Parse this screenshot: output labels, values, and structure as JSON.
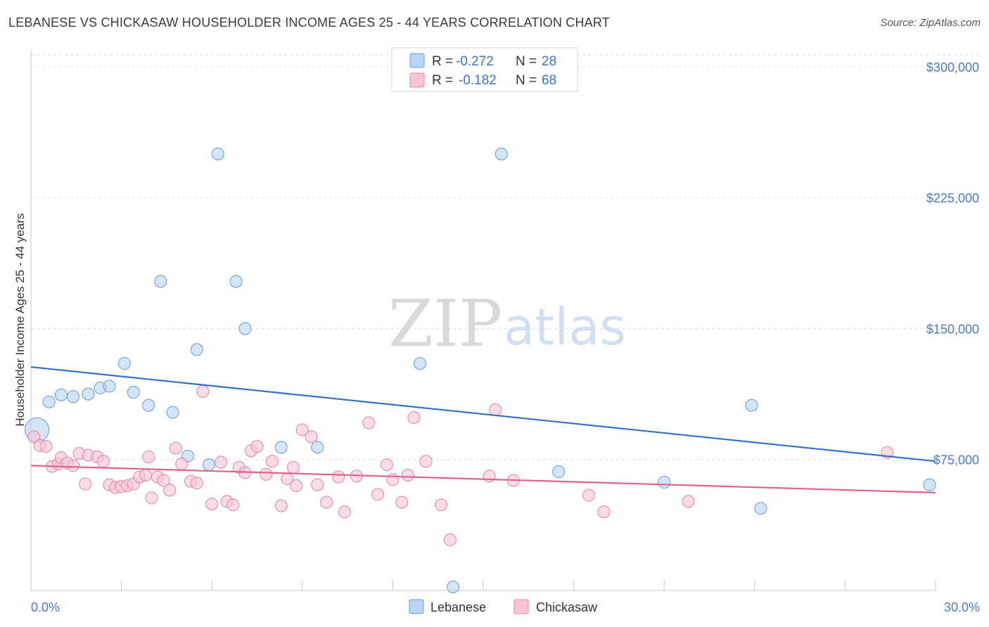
{
  "title": "LEBANESE VS CHICKASAW HOUSEHOLDER INCOME AGES 25 - 44 YEARS CORRELATION CHART",
  "source": "Source: ZipAtlas.com",
  "watermark": {
    "zip": "ZIP",
    "atlas": "atlas"
  },
  "colors": {
    "lebanese_fill": "#b9d3f4",
    "lebanese_stroke": "#6fa0dc",
    "lebanese_line": "#2f6fd0",
    "chickasaw_fill": "#f8c4d6",
    "chickasaw_stroke": "#e48aaa",
    "chickasaw_line": "#e0628e",
    "grid": "#dedede",
    "axis_text": "#4a7cc6"
  },
  "legend": {
    "lebanese": {
      "r_label": "R = ",
      "r_value": "-0.272",
      "n_label": "N = ",
      "n_value": "28"
    },
    "chickasaw": {
      "r_label": "R = ",
      "r_value": "-0.182",
      "n_label": "N = ",
      "n_value": "68"
    }
  },
  "chart_data": {
    "type": "scatter",
    "title": "LEBANESE VS CHICKASAW HOUSEHOLDER INCOME AGES 25 - 44 YEARS CORRELATION CHART",
    "xlabel": "",
    "ylabel": "Householder Income Ages 25 - 44 years",
    "xlim": [
      0,
      30
    ],
    "ylim": [
      0,
      310000
    ],
    "x_tick_labels": [
      {
        "value": 0,
        "label": "0.0%"
      },
      {
        "value": 30,
        "label": "30.0%"
      }
    ],
    "y_tick_labels": [
      {
        "value": 75000,
        "label": "$75,000"
      },
      {
        "value": 150000,
        "label": "$150,000"
      },
      {
        "value": 225000,
        "label": "$225,000"
      },
      {
        "value": 300000,
        "label": "$300,000"
      }
    ],
    "y_grid": [
      75000,
      150000,
      225000,
      300000
    ],
    "grid": true,
    "legend_position": "top-center",
    "series": [
      {
        "name": "Lebanese",
        "trend": {
          "x": [
            0,
            30
          ],
          "y": [
            128000,
            74000
          ]
        },
        "points": [
          {
            "x": 0.2,
            "y": 92000,
            "size": "large"
          },
          {
            "x": 0.6,
            "y": 108000
          },
          {
            "x": 1.0,
            "y": 112000
          },
          {
            "x": 1.4,
            "y": 111000
          },
          {
            "x": 1.9,
            "y": 112500
          },
          {
            "x": 2.3,
            "y": 116000
          },
          {
            "x": 2.6,
            "y": 117000
          },
          {
            "x": 3.1,
            "y": 130000
          },
          {
            "x": 3.4,
            "y": 113500
          },
          {
            "x": 3.9,
            "y": 106000
          },
          {
            "x": 4.3,
            "y": 177000
          },
          {
            "x": 4.7,
            "y": 102000
          },
          {
            "x": 5.2,
            "y": 77000
          },
          {
            "x": 5.5,
            "y": 138000
          },
          {
            "x": 5.9,
            "y": 72000
          },
          {
            "x": 6.2,
            "y": 250000
          },
          {
            "x": 6.8,
            "y": 177000
          },
          {
            "x": 7.1,
            "y": 150000
          },
          {
            "x": 8.3,
            "y": 82000
          },
          {
            "x": 9.5,
            "y": 82000
          },
          {
            "x": 12.9,
            "y": 130000
          },
          {
            "x": 14.0,
            "y": 2000
          },
          {
            "x": 15.6,
            "y": 250000
          },
          {
            "x": 17.5,
            "y": 68000
          },
          {
            "x": 21.0,
            "y": 62000
          },
          {
            "x": 23.9,
            "y": 106000
          },
          {
            "x": 24.2,
            "y": 47000
          },
          {
            "x": 29.8,
            "y": 60500
          }
        ]
      },
      {
        "name": "Chickasaw",
        "trend": {
          "x": [
            0,
            30
          ],
          "y": [
            71500,
            56000
          ]
        },
        "points": [
          {
            "x": 0.1,
            "y": 88000
          },
          {
            "x": 0.3,
            "y": 83000
          },
          {
            "x": 0.5,
            "y": 82500
          },
          {
            "x": 0.7,
            "y": 71000
          },
          {
            "x": 0.9,
            "y": 72500
          },
          {
            "x": 1.0,
            "y": 76000
          },
          {
            "x": 1.2,
            "y": 73000
          },
          {
            "x": 1.4,
            "y": 71500
          },
          {
            "x": 1.6,
            "y": 78500
          },
          {
            "x": 1.8,
            "y": 61000
          },
          {
            "x": 1.9,
            "y": 77500
          },
          {
            "x": 2.2,
            "y": 76500
          },
          {
            "x": 2.4,
            "y": 74000
          },
          {
            "x": 2.6,
            "y": 60500
          },
          {
            "x": 2.8,
            "y": 59000
          },
          {
            "x": 3.0,
            "y": 59500
          },
          {
            "x": 3.2,
            "y": 60000
          },
          {
            "x": 3.4,
            "y": 61000
          },
          {
            "x": 3.6,
            "y": 65000
          },
          {
            "x": 3.8,
            "y": 66000
          },
          {
            "x": 3.9,
            "y": 76500
          },
          {
            "x": 4.0,
            "y": 53000
          },
          {
            "x": 4.2,
            "y": 65000
          },
          {
            "x": 4.4,
            "y": 63000
          },
          {
            "x": 4.6,
            "y": 57500
          },
          {
            "x": 4.8,
            "y": 81500
          },
          {
            "x": 5.0,
            "y": 72500
          },
          {
            "x": 5.3,
            "y": 62500
          },
          {
            "x": 5.5,
            "y": 61500
          },
          {
            "x": 5.7,
            "y": 114000
          },
          {
            "x": 6.0,
            "y": 49500
          },
          {
            "x": 6.3,
            "y": 73500
          },
          {
            "x": 6.5,
            "y": 51000
          },
          {
            "x": 6.7,
            "y": 49000
          },
          {
            "x": 6.9,
            "y": 70500
          },
          {
            "x": 7.1,
            "y": 67500
          },
          {
            "x": 7.3,
            "y": 80000
          },
          {
            "x": 7.5,
            "y": 82500
          },
          {
            "x": 7.8,
            "y": 66500
          },
          {
            "x": 8.0,
            "y": 74000
          },
          {
            "x": 8.3,
            "y": 48500
          },
          {
            "x": 8.5,
            "y": 64000
          },
          {
            "x": 8.7,
            "y": 70500
          },
          {
            "x": 8.8,
            "y": 60000
          },
          {
            "x": 9.0,
            "y": 92000
          },
          {
            "x": 9.3,
            "y": 88000
          },
          {
            "x": 9.5,
            "y": 60500
          },
          {
            "x": 9.8,
            "y": 50500
          },
          {
            "x": 10.2,
            "y": 65000
          },
          {
            "x": 10.4,
            "y": 45000
          },
          {
            "x": 10.8,
            "y": 65500
          },
          {
            "x": 11.2,
            "y": 96000
          },
          {
            "x": 11.5,
            "y": 55000
          },
          {
            "x": 11.8,
            "y": 72000
          },
          {
            "x": 12.0,
            "y": 63500
          },
          {
            "x": 12.3,
            "y": 50500
          },
          {
            "x": 12.5,
            "y": 66000
          },
          {
            "x": 12.7,
            "y": 99000
          },
          {
            "x": 13.1,
            "y": 74000
          },
          {
            "x": 13.6,
            "y": 49000
          },
          {
            "x": 13.9,
            "y": 29000
          },
          {
            "x": 15.2,
            "y": 65500
          },
          {
            "x": 15.4,
            "y": 103500
          },
          {
            "x": 16.0,
            "y": 63000
          },
          {
            "x": 18.5,
            "y": 54500
          },
          {
            "x": 19.0,
            "y": 45000
          },
          {
            "x": 21.8,
            "y": 51000
          },
          {
            "x": 28.4,
            "y": 79000
          }
        ]
      }
    ]
  },
  "bottom_legend": [
    "Lebanese",
    "Chickasaw"
  ]
}
